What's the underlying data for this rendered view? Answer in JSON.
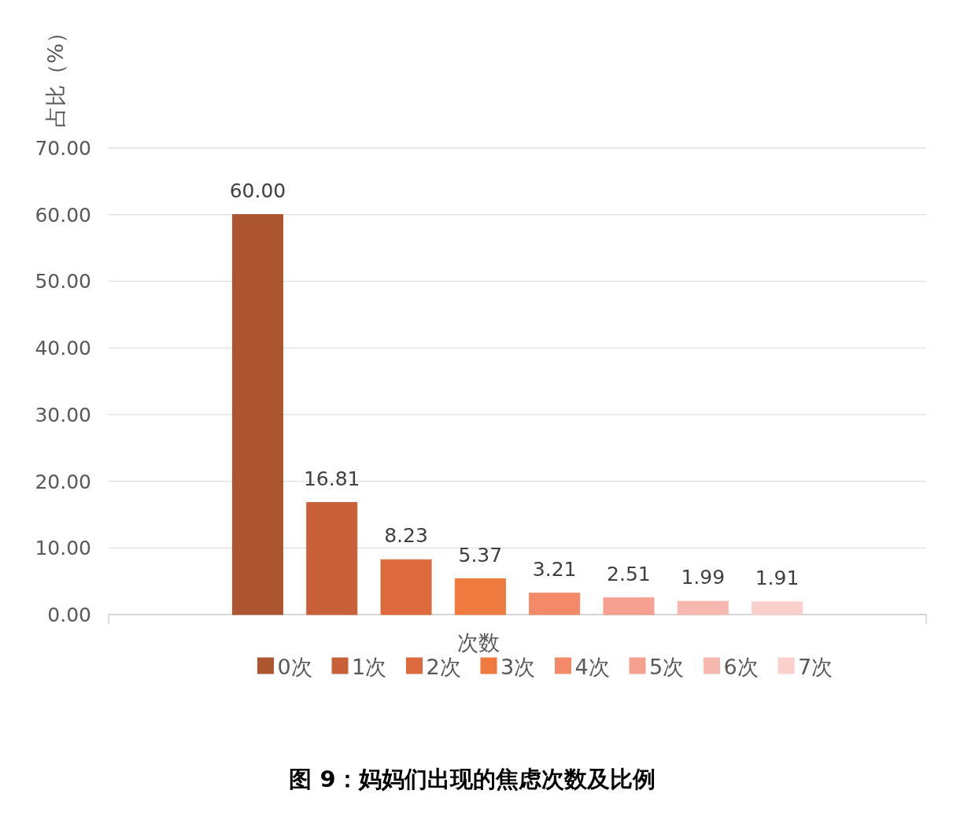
{
  "chart_data": {
    "type": "bar",
    "title": "图 9：妈妈们出现的焦虑次数及比例",
    "ylabel": "占比（%）",
    "categories": [
      "次数"
    ],
    "series": [
      {
        "name": "0次",
        "color": "#ad5530",
        "values": [
          60.0
        ],
        "value_labels": [
          "60.00"
        ]
      },
      {
        "name": "1次",
        "color": "#c8613a",
        "values": [
          16.81
        ],
        "value_labels": [
          "16.81"
        ]
      },
      {
        "name": "2次",
        "color": "#dc6a3c",
        "values": [
          8.23
        ],
        "value_labels": [
          "8.23"
        ]
      },
      {
        "name": "3次",
        "color": "#ee7a40",
        "values": [
          5.37
        ],
        "value_labels": [
          "5.37"
        ]
      },
      {
        "name": "4次",
        "color": "#f28a6a",
        "values": [
          3.21
        ],
        "value_labels": [
          "3.21"
        ]
      },
      {
        "name": "5次",
        "color": "#f5a090",
        "values": [
          2.51
        ],
        "value_labels": [
          "2.51"
        ]
      },
      {
        "name": "6次",
        "color": "#f7b8b0",
        "values": [
          1.99
        ],
        "value_labels": [
          "1.99"
        ]
      },
      {
        "name": "7次",
        "color": "#f9d0cc",
        "values": [
          1.91
        ],
        "value_labels": [
          "1.91"
        ]
      }
    ],
    "ylim": [
      0,
      70
    ],
    "yticks": [
      {
        "value": 0,
        "label": "0.00"
      },
      {
        "value": 10,
        "label": "10.00"
      },
      {
        "value": 20,
        "label": "20.00"
      },
      {
        "value": 30,
        "label": "30.00"
      },
      {
        "value": 40,
        "label": "40.00"
      },
      {
        "value": 50,
        "label": "50.00"
      },
      {
        "value": 60,
        "label": "60.00"
      },
      {
        "value": 70,
        "label": "70.00"
      }
    ],
    "grid": "y",
    "legend": "bottom"
  }
}
